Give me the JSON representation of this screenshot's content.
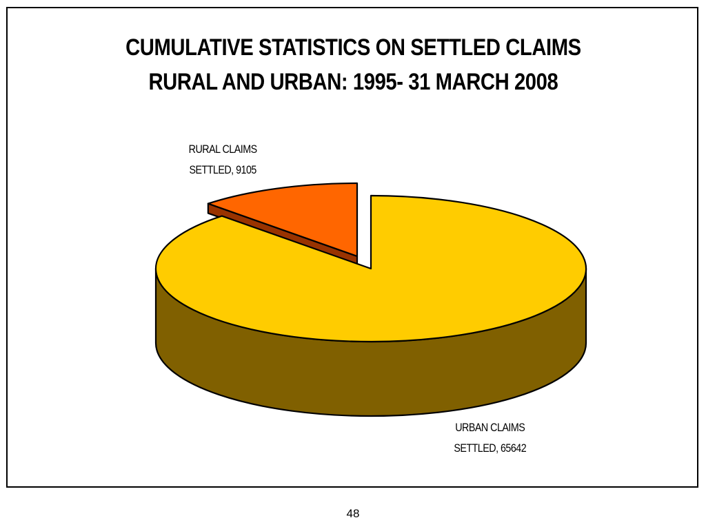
{
  "slide": {
    "page_number": "48"
  },
  "chart_data": {
    "type": "pie",
    "title": [
      "CUMULATIVE STATISTICS ON SETTLED CLAIMS",
      "RURAL AND URBAN: 1995- 31 MARCH 2008"
    ],
    "slices": [
      {
        "name": "RURAL CLAIMS SETTLED",
        "value": 9105,
        "label_lines": [
          "RURAL CLAIMS",
          "SETTLED, 9105"
        ],
        "top_color": "#FF6600",
        "side_color": "#993300",
        "exploded": true
      },
      {
        "name": "URBAN CLAIMS SETTLED",
        "value": 65642,
        "label_lines": [
          "URBAN CLAIMS",
          "SETTLED, 65642"
        ],
        "top_color": "#FFCC00",
        "side_color": "#806000",
        "exploded": false
      }
    ],
    "style": "3d-exploded-pie",
    "legend": "none"
  }
}
